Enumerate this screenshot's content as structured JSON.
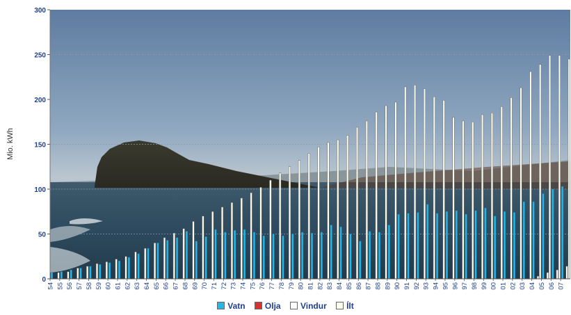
{
  "chart_data": {
    "type": "bar",
    "ylabel": "Mio. kWh",
    "ylim": [
      0,
      300
    ],
    "yticks": [
      0,
      50,
      100,
      150,
      200,
      250,
      300
    ],
    "gridlines": true,
    "background": "photograph of a sea cliff island",
    "legend_position": "bottom-center",
    "categories": [
      "54",
      "55",
      "56",
      "57",
      "58",
      "59",
      "60",
      "61",
      "62",
      "63",
      "64",
      "65",
      "66",
      "67",
      "68",
      "69",
      "70",
      "71",
      "72",
      "73",
      "74",
      "75",
      "76",
      "77",
      "78",
      "79",
      "80",
      "81",
      "82",
      "83",
      "84",
      "85",
      "86",
      "87",
      "88",
      "89",
      "90",
      "91",
      "92",
      "93",
      "94",
      "95",
      "96",
      "97",
      "98",
      "99",
      "00",
      "01",
      "02",
      "03",
      "04",
      "05",
      "06",
      "07"
    ],
    "series": [
      {
        "name": "Vatn",
        "color": "#29b6e6",
        "values": [
          7,
          8,
          10,
          12,
          14,
          16,
          18,
          20,
          24,
          28,
          34,
          40,
          43,
          46,
          53,
          42,
          47,
          55,
          52,
          54,
          55,
          52,
          48,
          50,
          48,
          50,
          52,
          51,
          52,
          60,
          58,
          50,
          42,
          53,
          52,
          60,
          72,
          73,
          74,
          83,
          73,
          75,
          76,
          72,
          76,
          79,
          70,
          75,
          74,
          86,
          86,
          95,
          100,
          103
        ]
      },
      {
        "name": "Olja",
        "color": "#d9312b",
        "values": [
          0,
          0,
          0,
          0,
          0,
          0,
          0,
          0,
          0,
          0,
          0,
          0,
          0,
          0,
          0,
          0,
          0,
          0,
          0,
          0,
          0,
          0,
          0,
          0,
          0,
          0,
          0,
          0,
          0,
          0,
          0,
          0,
          0,
          0,
          0,
          0,
          0,
          0,
          0,
          0,
          0,
          0,
          0,
          0,
          0,
          0,
          0,
          0,
          0,
          0,
          0,
          0,
          0,
          0
        ]
      },
      {
        "name": "Vindur",
        "color": "#ffffff",
        "values": [
          0,
          0,
          0,
          0,
          0,
          0,
          0,
          0,
          0,
          0,
          0,
          0,
          0,
          0,
          0,
          0,
          0,
          0,
          0,
          0,
          0,
          0,
          0,
          0,
          0,
          0,
          0,
          0,
          0,
          0,
          0,
          0,
          0,
          0,
          0,
          0,
          0,
          0,
          0,
          0,
          0,
          0,
          0,
          0,
          0,
          0,
          0,
          0,
          0,
          0,
          3,
          7,
          10,
          14
        ]
      },
      {
        "name": "Ílt",
        "color": "#fffff0",
        "values": [
          7,
          8,
          12,
          14,
          17,
          19,
          22,
          25,
          30,
          34,
          40,
          46,
          51,
          56,
          64,
          70,
          75,
          80,
          85,
          90,
          96,
          102,
          110,
          118,
          125,
          132,
          140,
          147,
          152,
          155,
          160,
          169,
          176,
          186,
          193,
          197,
          214,
          216,
          212,
          203,
          199,
          180,
          176,
          175,
          183,
          185,
          192,
          202,
          213,
          231,
          239,
          249,
          249,
          245
        ]
      }
    ]
  },
  "legend": {
    "items": [
      {
        "label": "Vatn",
        "color": "#29b6e6"
      },
      {
        "label": "Olja",
        "color": "#d9312b"
      },
      {
        "label": "Vindur",
        "color": "#ffffff"
      },
      {
        "label": "Ílt",
        "color": "#fffff0"
      }
    ]
  }
}
